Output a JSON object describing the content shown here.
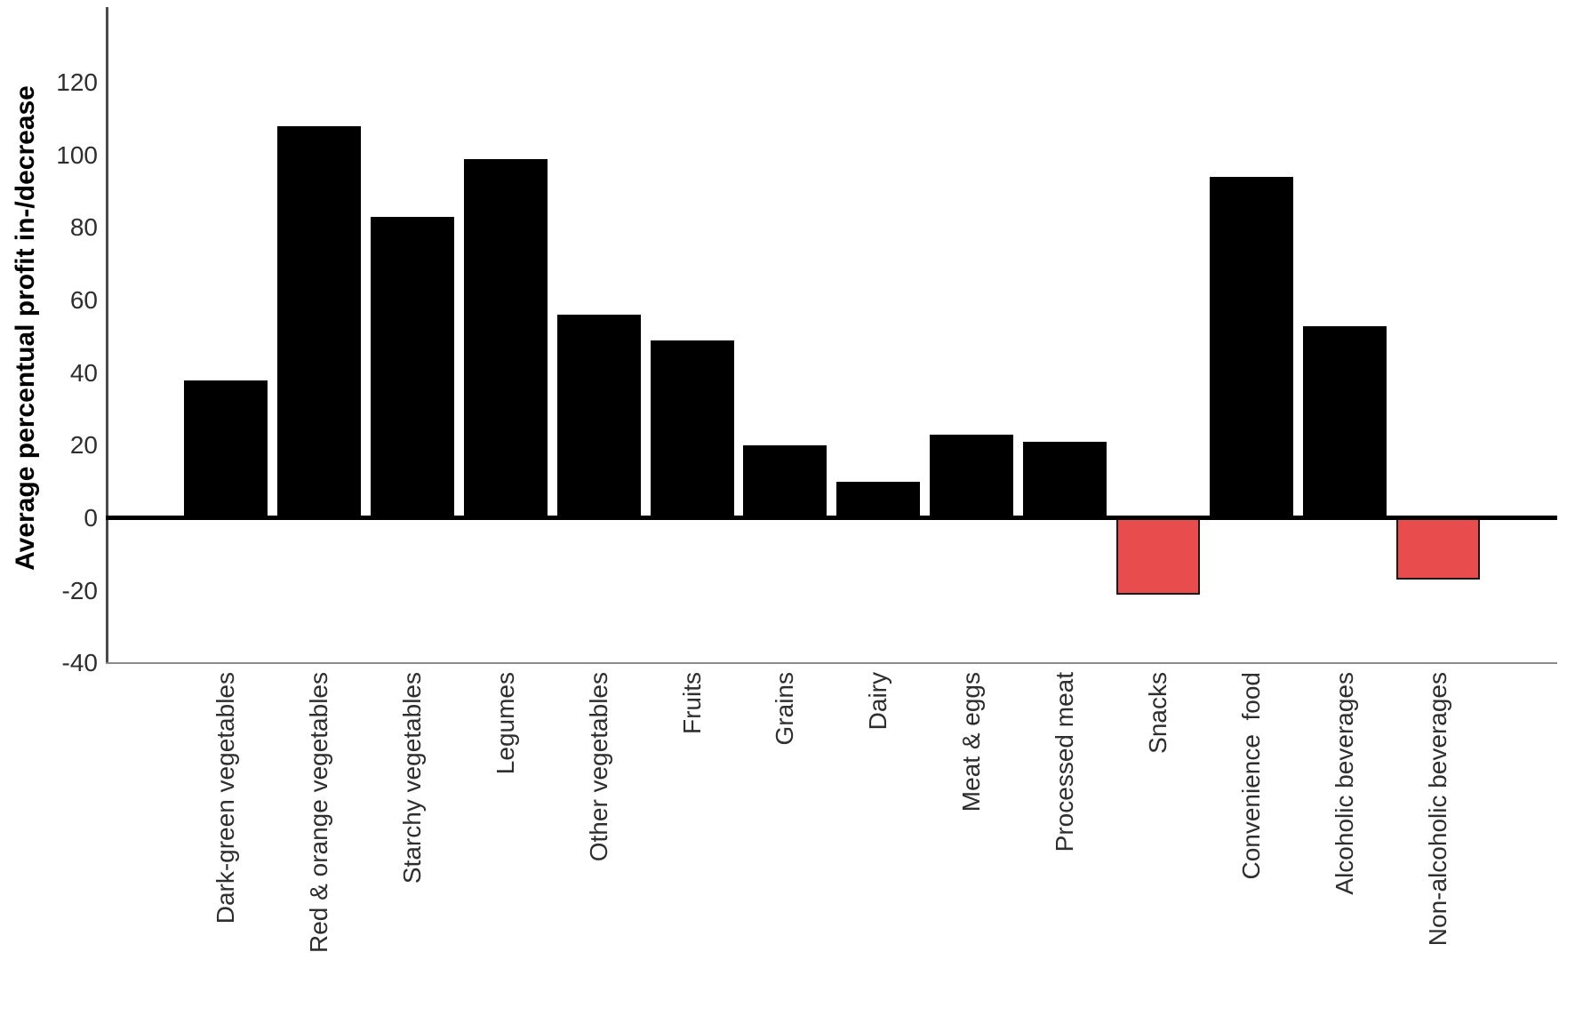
{
  "chart_data": {
    "type": "bar",
    "title": "",
    "ylabel": "Average percentual profit in-/decrease",
    "xlabel": "",
    "categories": [
      "Dark-green vegetables",
      "Red & orange vegetables",
      "Starchy vegetables",
      "Legumes",
      "Other vegetables",
      "Fruits",
      "Grains",
      "Dairy",
      "Meat & eggs",
      "Processed meat",
      "Snacks",
      "Convenience  food",
      "Alcoholic beverages",
      "Non-alcoholic beverages"
    ],
    "values": [
      38,
      108,
      83,
      99,
      56,
      49,
      20,
      10,
      23,
      21,
      -21,
      94,
      53,
      -17
    ],
    "yticks": [
      120,
      100,
      80,
      60,
      40,
      20,
      0,
      -20,
      -40
    ],
    "ylim": [
      -40,
      141
    ],
    "grid": false,
    "legend": null,
    "colors": {
      "positive_bar": "#000000",
      "negative_bar": "#e84c4c",
      "bar_border": "#1a1a1a",
      "y_axis_line": "#4a4a4a",
      "x_axis_line": "#8a8a8a",
      "zero_line": "#000000",
      "text": "#2e2e2e",
      "background": "#ffffff"
    }
  }
}
